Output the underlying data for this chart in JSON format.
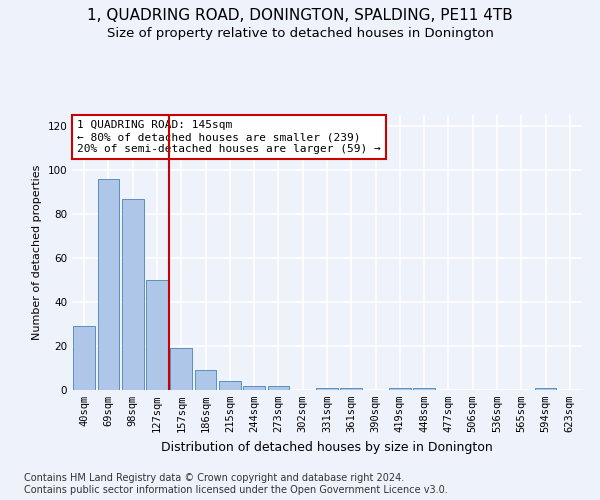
{
  "title": "1, QUADRING ROAD, DONINGTON, SPALDING, PE11 4TB",
  "subtitle": "Size of property relative to detached houses in Donington",
  "xlabel": "Distribution of detached houses by size in Donington",
  "ylabel": "Number of detached properties",
  "categories": [
    "40sqm",
    "69sqm",
    "98sqm",
    "127sqm",
    "157sqm",
    "186sqm",
    "215sqm",
    "244sqm",
    "273sqm",
    "302sqm",
    "331sqm",
    "361sqm",
    "390sqm",
    "419sqm",
    "448sqm",
    "477sqm",
    "506sqm",
    "536sqm",
    "565sqm",
    "594sqm",
    "623sqm"
  ],
  "values": [
    29,
    96,
    87,
    50,
    19,
    9,
    4,
    2,
    2,
    0,
    1,
    1,
    0,
    1,
    1,
    0,
    0,
    0,
    0,
    1,
    0
  ],
  "bar_color": "#aec6e8",
  "bar_edge_color": "#5a8fc0",
  "vline_x_index": 3,
  "vline_color": "#cc0000",
  "annotation_text": "1 QUADRING ROAD: 145sqm\n← 80% of detached houses are smaller (239)\n20% of semi-detached houses are larger (59) →",
  "annotation_box_color": "#ffffff",
  "annotation_box_edge_color": "#cc0000",
  "ylim": [
    0,
    125
  ],
  "yticks": [
    0,
    20,
    40,
    60,
    80,
    100,
    120
  ],
  "footer_text": "Contains HM Land Registry data © Crown copyright and database right 2024.\nContains public sector information licensed under the Open Government Licence v3.0.",
  "background_color": "#eef2fb",
  "axes_background_color": "#eef2fb",
  "grid_color": "#ffffff",
  "title_fontsize": 11,
  "subtitle_fontsize": 9.5,
  "annotation_fontsize": 8,
  "footer_fontsize": 7,
  "ylabel_fontsize": 8,
  "xlabel_fontsize": 9,
  "tick_fontsize": 7.5
}
